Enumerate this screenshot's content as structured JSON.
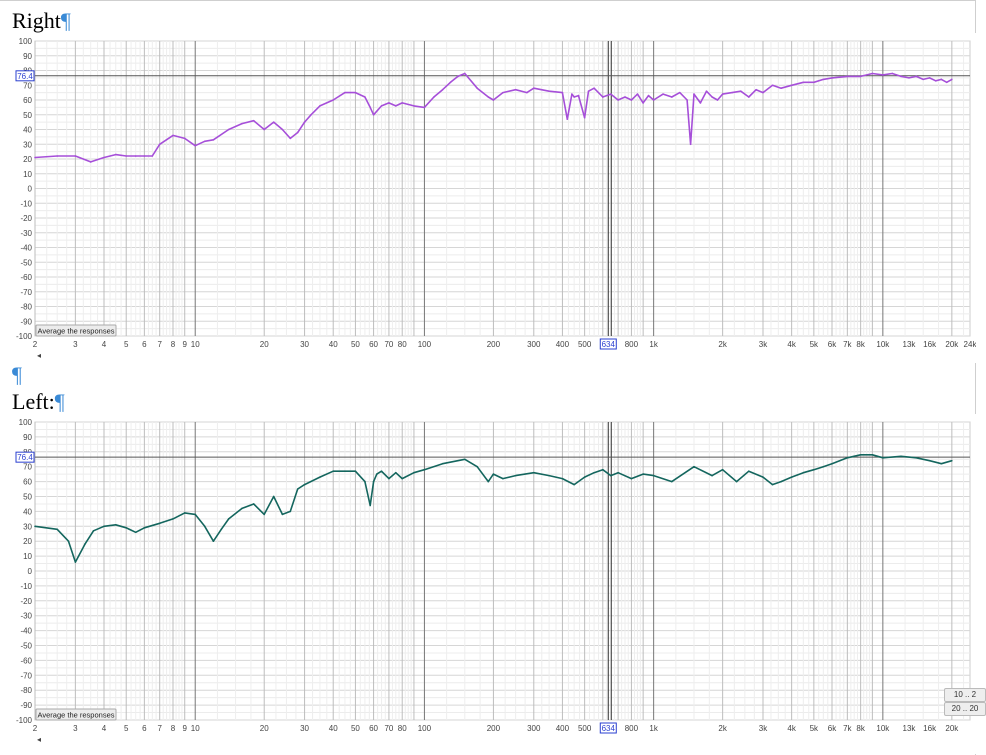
{
  "document": {
    "right_heading": "Right",
    "left_heading": "Left:",
    "pilcrow": "¶",
    "average_button": "Average the responses",
    "side_buttons": [
      "10 .. 2",
      "20 .. 20"
    ]
  },
  "chart_data": [
    {
      "type": "line",
      "title": "",
      "xscale": "log",
      "xlim": [
        2,
        24000
      ],
      "ylim": [
        -100,
        100
      ],
      "grid": true,
      "x_tick_labels": [
        "2",
        "3",
        "4",
        "5",
        "6",
        "7",
        "8",
        "9",
        "10",
        "20",
        "30",
        "40",
        "50",
        "60",
        "70",
        "80",
        "100",
        "200",
        "300",
        "400",
        "500",
        "634",
        "800",
        "1k",
        "2k",
        "3k",
        "4k",
        "5k",
        "6k",
        "7k",
        "8k",
        "10k",
        "13k",
        "16k",
        "20k",
        "24k"
      ],
      "y_ticks": [
        100,
        90,
        80,
        70,
        60,
        50,
        40,
        30,
        20,
        10,
        0,
        -10,
        -20,
        -30,
        -40,
        -50,
        -60,
        -70,
        -80,
        -90,
        -100
      ],
      "cursor": {
        "x": 634,
        "y": 76.4,
        "x_label": "634",
        "y_label": "76.4"
      },
      "series": [
        {
          "color": "#a64fd9",
          "x": [
            2,
            2.5,
            3,
            3.5,
            4,
            4.5,
            5,
            5.5,
            6,
            6.5,
            7,
            8,
            9,
            10,
            11,
            12,
            14,
            16,
            18,
            20,
            22,
            24,
            26,
            28,
            30,
            32,
            35,
            40,
            45,
            50,
            55,
            58,
            60,
            65,
            70,
            75,
            80,
            90,
            100,
            110,
            120,
            130,
            140,
            150,
            170,
            190,
            200,
            220,
            250,
            280,
            300,
            350,
            400,
            420,
            440,
            450,
            470,
            500,
            520,
            550,
            600,
            650,
            700,
            750,
            800,
            850,
            900,
            950,
            1000,
            1100,
            1200,
            1300,
            1400,
            1450,
            1500,
            1600,
            1700,
            1800,
            1900,
            2000,
            2200,
            2400,
            2600,
            2800,
            3000,
            3300,
            3600,
            4000,
            4500,
            5000,
            5500,
            6000,
            7000,
            8000,
            9000,
            10000,
            11000,
            12000,
            13000,
            14000,
            15000,
            16000,
            17000,
            18000,
            19000,
            20000
          ],
          "y": [
            21,
            22,
            22,
            18,
            21,
            23,
            22,
            22,
            22,
            22,
            30,
            36,
            34,
            29,
            32,
            33,
            40,
            44,
            46,
            40,
            45,
            40,
            34,
            38,
            45,
            50,
            56,
            60,
            65,
            65,
            62,
            55,
            50,
            56,
            58,
            56,
            58,
            56,
            55,
            62,
            67,
            72,
            76,
            78,
            68,
            62,
            60,
            65,
            67,
            65,
            68,
            66,
            65,
            47,
            64,
            62,
            63,
            48,
            66,
            68,
            62,
            64,
            60,
            62,
            60,
            64,
            58,
            63,
            60,
            64,
            62,
            65,
            60,
            30,
            64,
            58,
            66,
            62,
            60,
            64,
            65,
            66,
            62,
            67,
            65,
            70,
            68,
            70,
            72,
            72,
            74,
            75,
            76,
            76,
            78,
            77,
            78,
            76,
            75,
            76,
            74,
            75,
            73,
            74,
            72,
            74
          ]
        }
      ]
    },
    {
      "type": "line",
      "title": "",
      "xscale": "log",
      "xlim": [
        2,
        24000
      ],
      "ylim": [
        -100,
        100
      ],
      "grid": true,
      "x_tick_labels": [
        "2",
        "3",
        "4",
        "5",
        "6",
        "7",
        "8",
        "9",
        "10",
        "20",
        "30",
        "40",
        "50",
        "60",
        "70",
        "80",
        "100",
        "200",
        "300",
        "400",
        "500",
        "634",
        "800",
        "1k",
        "2k",
        "3k",
        "4k",
        "5k",
        "6k",
        "7k",
        "8k",
        "10k",
        "13k",
        "16k",
        "20k"
      ],
      "y_ticks": [
        100,
        90,
        80,
        70,
        60,
        50,
        40,
        30,
        20,
        10,
        0,
        -10,
        -20,
        -30,
        -40,
        -50,
        -60,
        -70,
        -80,
        -90,
        -100
      ],
      "cursor": {
        "x": 634,
        "y": 76.4,
        "x_label": "634",
        "y_label": "76.4"
      },
      "series": [
        {
          "color": "#14665e",
          "x": [
            2,
            2.5,
            2.8,
            3,
            3.3,
            3.6,
            4,
            4.5,
            5,
            5.5,
            6,
            7,
            8,
            9,
            10,
            11,
            12,
            13,
            14,
            16,
            18,
            20,
            22,
            24,
            26,
            28,
            30,
            35,
            40,
            45,
            50,
            55,
            58,
            60,
            62,
            65,
            70,
            75,
            80,
            90,
            100,
            120,
            150,
            170,
            190,
            200,
            220,
            250,
            300,
            350,
            400,
            450,
            500,
            550,
            600,
            650,
            700,
            800,
            900,
            1000,
            1200,
            1500,
            1800,
            2000,
            2300,
            2600,
            3000,
            3300,
            3600,
            4000,
            4500,
            5000,
            5500,
            6000,
            7000,
            8000,
            9000,
            10000,
            12000,
            14000,
            16000,
            18000,
            20000
          ],
          "y": [
            30,
            28,
            20,
            6,
            18,
            27,
            30,
            31,
            29,
            26,
            29,
            32,
            35,
            39,
            38,
            30,
            20,
            28,
            35,
            42,
            45,
            38,
            50,
            38,
            40,
            55,
            58,
            63,
            67,
            67,
            67,
            60,
            44,
            60,
            65,
            67,
            62,
            66,
            62,
            66,
            68,
            72,
            75,
            70,
            60,
            65,
            62,
            64,
            66,
            64,
            62,
            58,
            63,
            66,
            68,
            64,
            66,
            62,
            65,
            64,
            60,
            70,
            64,
            68,
            60,
            67,
            63,
            58,
            60,
            63,
            66,
            68,
            70,
            72,
            76,
            78,
            78,
            76,
            77,
            76,
            74,
            72,
            74
          ]
        }
      ]
    }
  ]
}
